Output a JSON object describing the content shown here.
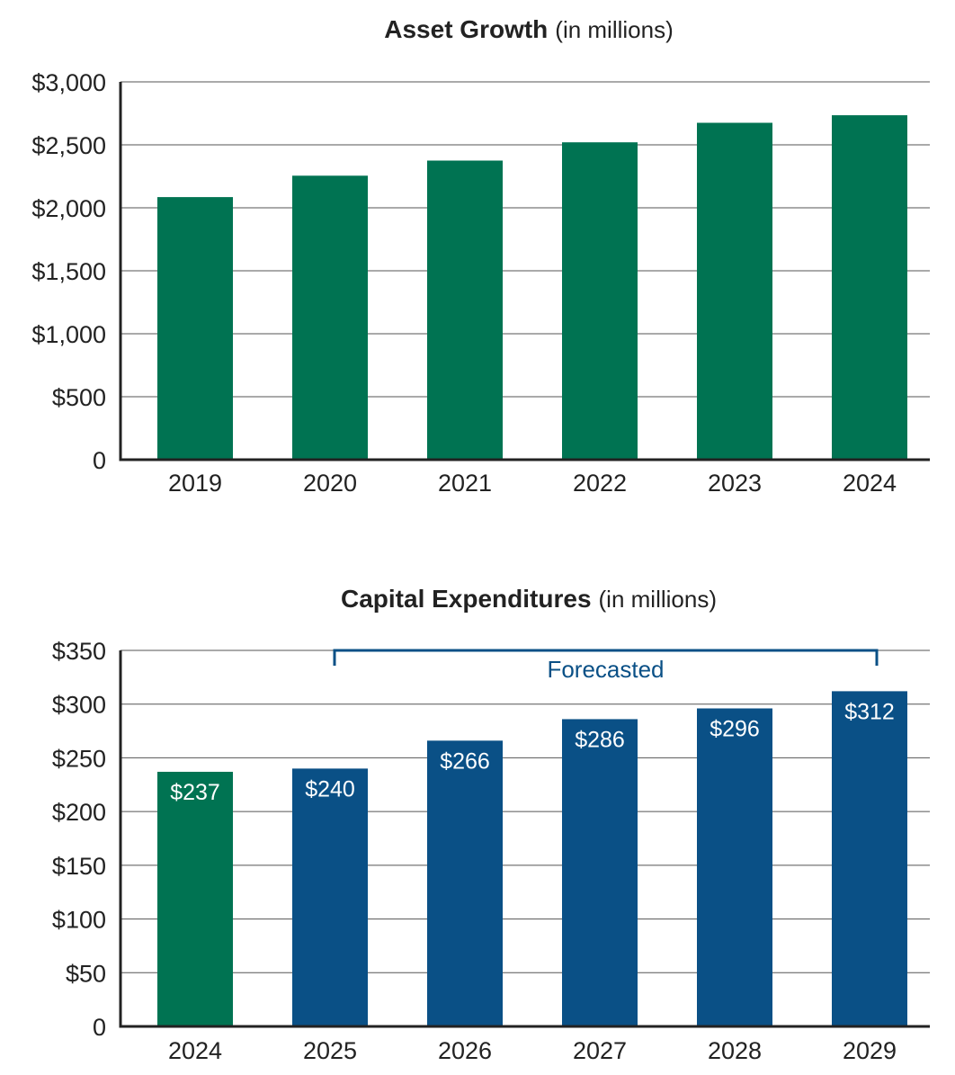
{
  "chart_data": [
    {
      "type": "bar",
      "title": "Asset Growth",
      "subtitle": "(in millions)",
      "categories": [
        "2019",
        "2020",
        "2021",
        "2022",
        "2023",
        "2024"
      ],
      "values": [
        2085,
        2255,
        2375,
        2520,
        2675,
        2735
      ],
      "ylim": [
        0,
        3000
      ],
      "yticks": [
        0,
        500,
        1000,
        1500,
        2000,
        2500,
        3000
      ],
      "ytick_labels": [
        "0",
        "$500",
        "$1,000",
        "$1,500",
        "$2,000",
        "$2,500",
        "$3,000"
      ],
      "bar_colors": [
        "#007352",
        "#007352",
        "#007352",
        "#007352",
        "#007352",
        "#007352"
      ],
      "grid": true
    },
    {
      "type": "bar",
      "title": "Capital Expenditures",
      "subtitle": "(in millions)",
      "categories": [
        "2024",
        "2025",
        "2026",
        "2027",
        "2028",
        "2029"
      ],
      "values": [
        237,
        240,
        266,
        286,
        296,
        312
      ],
      "data_labels": [
        "$237",
        "$240",
        "$266",
        "$286",
        "$296",
        "$312"
      ],
      "ylim": [
        0,
        350
      ],
      "yticks": [
        0,
        50,
        100,
        150,
        200,
        250,
        300,
        350
      ],
      "ytick_labels": [
        "0",
        "$50",
        "$100",
        "$150",
        "$200",
        "$250",
        "$300",
        "$350"
      ],
      "bar_colors": [
        "#007352",
        "#0a5086",
        "#0a5086",
        "#0a5086",
        "#0a5086",
        "#0a5086"
      ],
      "annotation": {
        "text": "Forecasted",
        "from_category": "2025",
        "to_category": "2029",
        "color": "#0a5086"
      },
      "grid": true
    }
  ]
}
